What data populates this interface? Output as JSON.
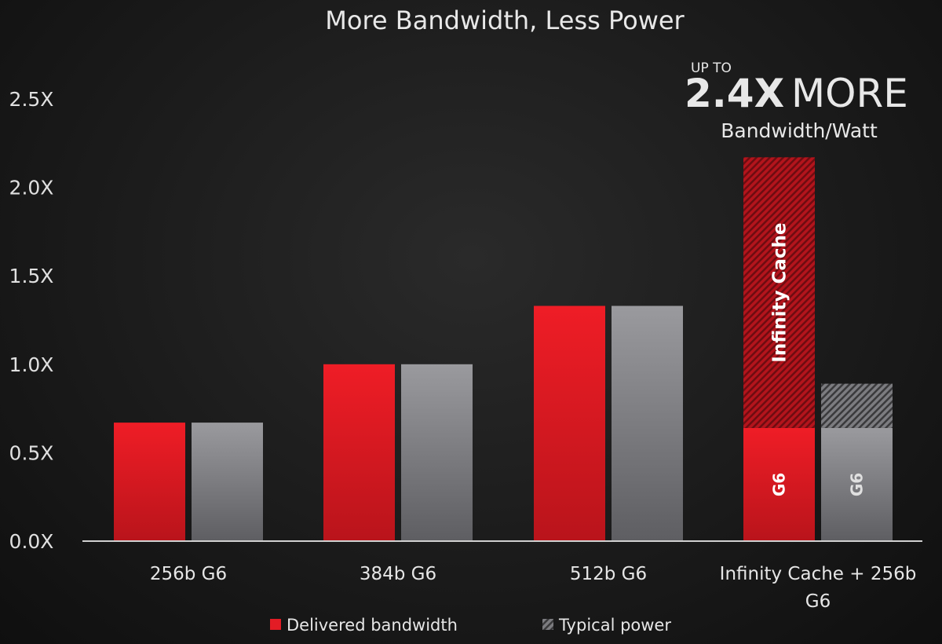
{
  "chart_data": {
    "type": "bar",
    "title": "More Bandwidth, Less Power",
    "categories": [
      "256b G6",
      "384b G6",
      "512b G6",
      "Infinity Cache + 256b G6"
    ],
    "series": [
      {
        "name": "Delivered bandwidth",
        "color": "#e31c25",
        "values": [
          0.67,
          1.0,
          1.33,
          2.17
        ]
      },
      {
        "name": "Typical power",
        "color": "#8e8e92",
        "values": [
          0.67,
          1.0,
          1.33,
          0.89
        ]
      }
    ],
    "segments": {
      "category": "Infinity Cache + 256b G6",
      "delivered_bandwidth": [
        {
          "label": "G6",
          "value": 0.64
        },
        {
          "label": "Infinity Cache",
          "value": 1.53
        }
      ],
      "typical_power": [
        {
          "label": "G6",
          "value": 0.64
        },
        {
          "value": 0.25
        }
      ]
    },
    "ylim": [
      0,
      2.5
    ],
    "yticks": [
      "0.0X",
      "0.5X",
      "1.0X",
      "1.5X",
      "2.0X",
      "2.5X"
    ],
    "grid": false,
    "legend_position": "bottom",
    "callout": {
      "prefix": "UP TO",
      "value": "2.4X",
      "suffix": "MORE",
      "caption": "Bandwidth/Watt"
    }
  }
}
